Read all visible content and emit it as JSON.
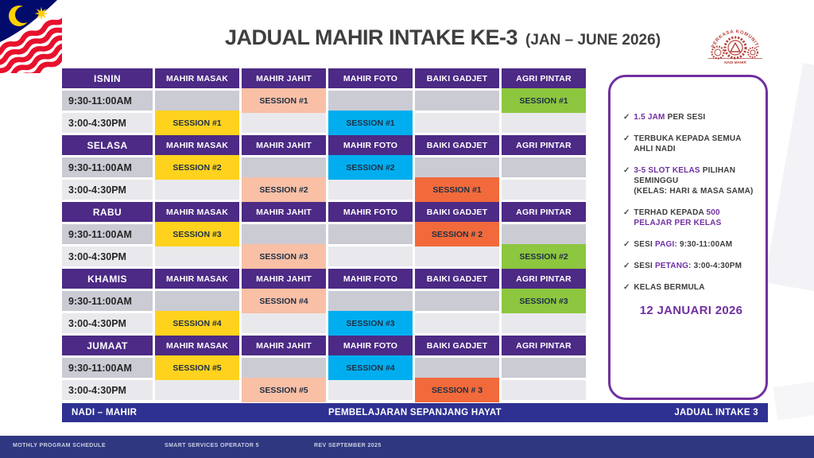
{
  "title": {
    "main": "JADUAL MAHIR INTAKE KE-3",
    "sub": "(JAN – JUNE 2026)"
  },
  "logo": {
    "arc_text": "PERKASA KOMUNITI",
    "label": "NADI MAHIR"
  },
  "schedule": {
    "columns": [
      "MAHIR MASAK",
      "MAHIR JAHIT",
      "MAHIR FOTO",
      "BAIKI GADJET",
      "AGRI PINTAR"
    ],
    "days": [
      {
        "name": "ISNIN",
        "rows": [
          {
            "time": "9:30-11:00AM",
            "cells": [
              null,
              {
                "label": "SESSION #1",
                "color": "salmon"
              },
              null,
              null,
              {
                "label": "SESSION #1",
                "color": "green"
              }
            ]
          },
          {
            "time": "3:00-4:30PM",
            "cells": [
              {
                "label": "SESSION #1",
                "color": "yellow"
              },
              null,
              {
                "label": "SESSION #1",
                "color": "blue"
              },
              null,
              null
            ]
          }
        ]
      },
      {
        "name": "SELASA",
        "rows": [
          {
            "time": "9:30-11:00AM",
            "cells": [
              {
                "label": "SESSION #2",
                "color": "yellow"
              },
              null,
              {
                "label": "SESSION #2",
                "color": "blue"
              },
              null,
              null
            ]
          },
          {
            "time": "3:00-4:30PM",
            "cells": [
              null,
              {
                "label": "SESSION #2",
                "color": "salmon"
              },
              null,
              {
                "label": "SESSION #1",
                "color": "orange"
              },
              null
            ]
          }
        ]
      },
      {
        "name": "RABU",
        "rows": [
          {
            "time": "9:30-11:00AM",
            "cells": [
              {
                "label": "SESSION #3",
                "color": "yellow"
              },
              null,
              null,
              {
                "label": "SESSION # 2",
                "color": "orange"
              },
              null
            ]
          },
          {
            "time": "3:00-4:30PM",
            "cells": [
              null,
              {
                "label": "SESSION #3",
                "color": "salmon"
              },
              null,
              null,
              {
                "label": "SESSION #2",
                "color": "green"
              }
            ]
          }
        ]
      },
      {
        "name": "KHAMIS",
        "rows": [
          {
            "time": "9:30-11:00AM",
            "cells": [
              null,
              {
                "label": "SESSION #4",
                "color": "salmon"
              },
              null,
              null,
              {
                "label": "SESSION #3",
                "color": "green"
              }
            ]
          },
          {
            "time": "3:00-4:30PM",
            "cells": [
              {
                "label": "SESSION #4",
                "color": "yellow"
              },
              null,
              {
                "label": "SESSION #3",
                "color": "blue"
              },
              null,
              null
            ]
          }
        ]
      },
      {
        "name": "JUMAAT",
        "rows": [
          {
            "time": "9:30-11:00AM",
            "cells": [
              {
                "label": "SESSION #5",
                "color": "yellow"
              },
              null,
              {
                "label": "SESSION #4",
                "color": "blue"
              },
              null,
              null
            ]
          },
          {
            "time": "3:00-4:30PM",
            "cells": [
              null,
              {
                "label": "SESSION #5",
                "color": "salmon"
              },
              null,
              {
                "label": "SESSION # 3",
                "color": "orange"
              },
              null
            ]
          }
        ]
      }
    ]
  },
  "info_panel": {
    "check": "✓",
    "items": [
      {
        "parts": [
          {
            "text": "1.5 JAM",
            "bold": true
          },
          {
            "text": " PER SESI"
          }
        ]
      },
      {
        "parts": [
          {
            "text": "TERBUKA KEPADA SEMUA AHLI NADI"
          }
        ]
      },
      {
        "parts": [
          {
            "text": "3-5 SLOT KELAS",
            "bold": true
          },
          {
            "text": " PILIHAN SEMINGGU\n(KELAS: HARI & MASA SAMA)"
          }
        ]
      },
      {
        "parts": [
          {
            "text": "TERHAD KEPADA "
          },
          {
            "text": "500 PELAJAR PER KELAS",
            "bold": true
          }
        ]
      },
      {
        "parts": [
          {
            "text": "SESI "
          },
          {
            "text": "PAGI:",
            "bold": true
          },
          {
            "text": " 9:30-11:00AM"
          }
        ]
      },
      {
        "parts": [
          {
            "text": "SESI "
          },
          {
            "text": "PETANG:",
            "bold": true
          },
          {
            "text": " 3:00-4:30PM"
          }
        ]
      },
      {
        "parts": [
          {
            "text": "KELAS BERMULA"
          }
        ]
      }
    ],
    "start_date": "12 JANUARI 2026"
  },
  "banner": {
    "left": "NADI – MAHIR",
    "center": "PEMBELAJARAN SEPANJANG HAYAT",
    "right": "JADUAL INTAKE 3"
  },
  "footer": {
    "left": "MOTHLY PROGRAM SCHEDULE",
    "center": "SMART SERVICES OPERATOR 5",
    "right": "REV SEPTEMBER 2025"
  },
  "colors": {
    "accent": "#7030A0",
    "header_purple": "#4C2A85",
    "navy": "#2E3192",
    "footer_navy": "#2F3780",
    "row_dark": "#CBCBD4",
    "row_light": "#E9E9ED",
    "sessions": {
      "yellow": "#FFD21E",
      "salmon": "#F9C0A6",
      "blue": "#00AEEF",
      "green": "#8DC63F",
      "orange": "#F26A3B"
    }
  }
}
